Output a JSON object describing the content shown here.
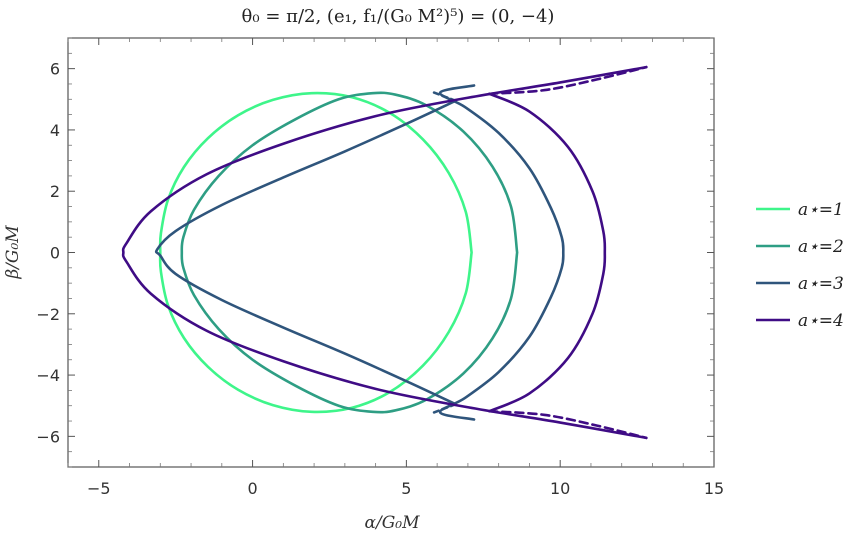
{
  "chart_data": {
    "type": "line",
    "title": "θ₀ = π/2, (e₁, f₁/(G₀ M²)⁵) = (0, −4)",
    "xlabel": "α/G₀M",
    "ylabel": "β/G₀M",
    "xlim": [
      -6,
      15
    ],
    "ylim": [
      -7,
      7
    ],
    "xticks": [
      -5,
      0,
      5,
      10,
      15
    ],
    "yticks": [
      -6,
      -4,
      -2,
      0,
      2,
      4,
      6
    ],
    "xtick_labels": [
      "−5",
      "0",
      "5",
      "10",
      "15"
    ],
    "ytick_labels": [
      "−6",
      "−4",
      "−2",
      "0",
      "2",
      "4",
      "6"
    ],
    "grid": false,
    "legend_position": "right",
    "series": [
      {
        "name": "a⋆=1",
        "color": "#3ef58a",
        "x": [
          7.12,
          6.93,
          6.38,
          5.54,
          4.45,
          3.22,
          1.92,
          0.66,
          -0.47,
          -1.45,
          -2.23,
          -2.75,
          -2.98,
          -3.0,
          -2.98,
          -2.75,
          -2.23,
          -1.45,
          -0.47,
          0.66,
          1.92,
          3.22,
          4.45,
          5.54,
          6.38,
          6.93,
          7.12
        ],
        "y": [
          0.0,
          1.33,
          2.59,
          3.69,
          4.56,
          5.07,
          5.2,
          4.98,
          4.48,
          3.73,
          2.79,
          1.72,
          0.62,
          0.0,
          -0.62,
          -1.72,
          -2.79,
          -3.73,
          -4.48,
          -4.98,
          -5.2,
          -5.07,
          -4.56,
          -3.69,
          -2.59,
          -1.33,
          0.0
        ]
      },
      {
        "name": "a⋆=2",
        "color": "#2e9e84",
        "x": [
          8.6,
          8.4,
          7.8,
          6.85,
          5.65,
          4.65,
          3.9,
          2.8,
          1.4,
          0.0,
          -1.1,
          -1.9,
          -2.25,
          -2.3,
          -2.25,
          -1.9,
          -1.1,
          0.0,
          1.4,
          2.8,
          3.9,
          4.65,
          5.65,
          6.85,
          7.8,
          8.4,
          8.6
        ],
        "y": [
          0.0,
          1.5,
          2.8,
          3.95,
          4.8,
          5.15,
          5.2,
          5.0,
          4.35,
          3.5,
          2.5,
          1.4,
          0.5,
          0.0,
          -0.5,
          -1.4,
          -2.5,
          -3.5,
          -4.35,
          -5.0,
          -5.2,
          -5.15,
          -4.8,
          -3.95,
          -2.8,
          -1.5,
          0.0
        ]
      },
      {
        "name": "a⋆=3",
        "color": "#2f557c",
        "x": [
          7.2,
          6.1,
          6.9,
          8.0,
          9.0,
          9.7,
          10.05,
          10.1,
          10.05,
          9.7,
          9.0,
          8.0,
          6.9,
          6.1,
          7.2
        ],
        "y": [
          5.45,
          5.22,
          4.75,
          3.9,
          2.75,
          1.45,
          0.5,
          0.0,
          -0.5,
          -1.45,
          -2.75,
          -3.9,
          -4.75,
          -5.22,
          -5.45
        ],
        "x2": [
          6.6,
          5.0,
          3.0,
          1.0,
          -1.0,
          -2.5,
          -3.1,
          -3.0,
          -2.5,
          -1.0,
          1.0,
          3.0,
          5.0,
          6.6
        ],
        "y2": [
          4.95,
          4.2,
          3.3,
          2.45,
          1.55,
          0.7,
          0.1,
          -0.1,
          -0.7,
          -1.55,
          -2.45,
          -3.3,
          -4.2,
          -4.95
        ]
      },
      {
        "name": "a⋆=4",
        "color": "#3f0c85",
        "x": [
          12.8,
          10.0,
          7.0,
          4.0,
          1.0,
          -1.5,
          -3.3,
          -4.1,
          -4.2,
          -4.1,
          -3.3,
          -1.5,
          1.0,
          4.0,
          7.0,
          10.0,
          12.8
        ],
        "y": [
          6.05,
          5.55,
          5.05,
          4.45,
          3.55,
          2.55,
          1.35,
          0.3,
          0.0,
          -0.3,
          -1.35,
          -2.55,
          -3.55,
          -4.45,
          -5.05,
          -5.55,
          -6.05
        ],
        "x2": [
          7.7,
          9.0,
          10.25,
          11.05,
          11.4,
          11.45,
          11.4,
          11.05,
          10.25,
          9.0,
          7.7
        ],
        "y2": [
          5.18,
          4.6,
          3.45,
          2.0,
          0.7,
          0.0,
          -0.7,
          -2.0,
          -3.45,
          -4.6,
          -5.18
        ],
        "dashed_x": [
          7.7,
          9.5,
          11.2,
          12.8
        ],
        "dashed_y": [
          5.18,
          5.3,
          5.65,
          6.05
        ]
      }
    ]
  }
}
